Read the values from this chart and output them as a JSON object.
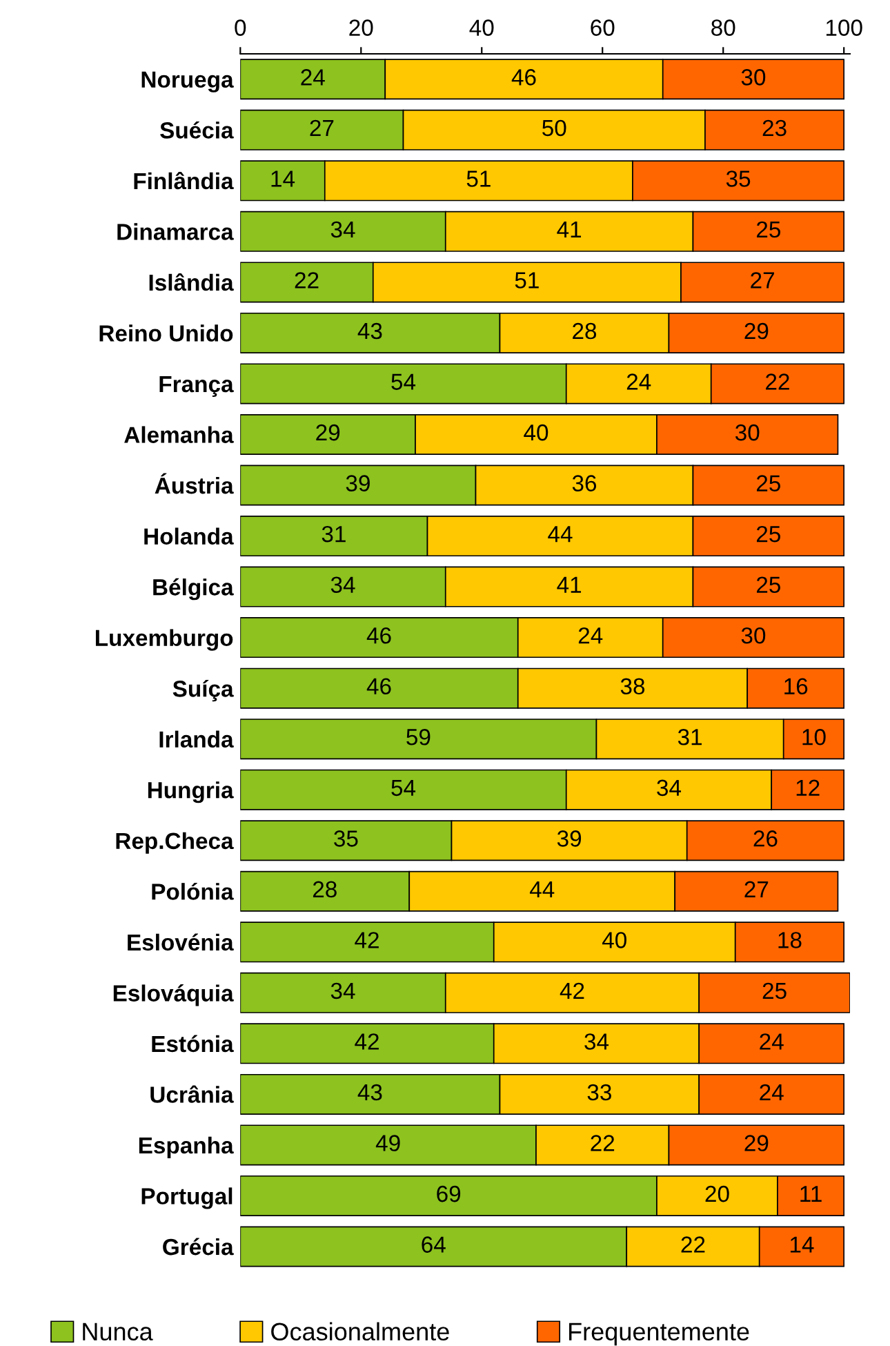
{
  "chart_data": {
    "type": "bar",
    "orientation": "horizontal",
    "stacked": true,
    "data_labels": true,
    "legend": "bottom",
    "grid": false,
    "categories": [
      "Noruega",
      "Suécia",
      "Finlândia",
      "Dinamarca",
      "Islândia",
      "Reino Unido",
      "França",
      "Alemanha",
      "Áustria",
      "Holanda",
      "Bélgica",
      "Luxemburgo",
      "Suíça",
      "Irlanda",
      "Hungria",
      "Rep.Checa",
      "Polónia",
      "Eslovénia",
      "Eslováquia",
      "Estónia",
      "Ucrânia",
      "Espanha",
      "Portugal",
      "Grécia"
    ],
    "series": [
      {
        "name": "Nunca",
        "color": "#8dc21f",
        "values": [
          24,
          27,
          14,
          34,
          22,
          43,
          54,
          29,
          39,
          31,
          34,
          46,
          46,
          59,
          54,
          35,
          28,
          42,
          34,
          42,
          43,
          49,
          69,
          64
        ]
      },
      {
        "name": "Ocasionalmente",
        "color": "#ffc800",
        "values": [
          46,
          50,
          51,
          41,
          51,
          28,
          24,
          40,
          36,
          44,
          41,
          24,
          38,
          31,
          34,
          39,
          44,
          40,
          42,
          34,
          33,
          22,
          20,
          22
        ]
      },
      {
        "name": "Frequentemente",
        "color": "#ff6600",
        "values": [
          30,
          23,
          35,
          25,
          27,
          29,
          22,
          30,
          25,
          25,
          25,
          30,
          16,
          10,
          12,
          26,
          27,
          18,
          25,
          24,
          24,
          29,
          11,
          14
        ]
      }
    ],
    "xlim": [
      0,
      101
    ],
    "xticks": [
      0,
      20,
      40,
      60,
      80,
      100
    ]
  }
}
